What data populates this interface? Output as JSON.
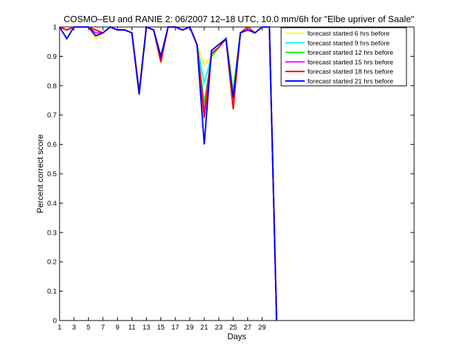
{
  "chart_data": {
    "type": "line",
    "title": "COSMO–EU and RANIE 2: 06/2007 12–18 UTC, 10.0 mm/6h for \"Elbe upriver of Saale\"",
    "xlabel": "Days",
    "ylabel": "Percent correct score",
    "xlim": [
      1,
      50
    ],
    "ylim": [
      0,
      1
    ],
    "xticks": [
      1,
      3,
      5,
      7,
      9,
      11,
      13,
      15,
      17,
      19,
      21,
      23,
      25,
      27,
      29
    ],
    "xtick_labels": [
      "1",
      "3",
      "5",
      "7",
      "9",
      "11",
      "13",
      "15",
      "17",
      "19",
      "21",
      "23",
      "25",
      "27",
      "29"
    ],
    "yticks": [
      0,
      0.1,
      0.2,
      0.3,
      0.4,
      0.5,
      0.6,
      0.7,
      0.8,
      0.9,
      1
    ],
    "ytick_labels": [
      "0",
      "0.1",
      "0.2",
      "0.3",
      "0.4",
      "0.5",
      "0.6",
      "0.7",
      "0.8",
      "0.9",
      "1"
    ],
    "grid": false,
    "legend_position": "top-right",
    "x": [
      1,
      2,
      3,
      4,
      5,
      6,
      7,
      8,
      9,
      10,
      11,
      12,
      13,
      14,
      15,
      16,
      17,
      18,
      19,
      20,
      21,
      22,
      23,
      24,
      25,
      26,
      27,
      28,
      29,
      30,
      31
    ],
    "series": [
      {
        "name": "forecast started 6 hrs before",
        "color": "#ffff00",
        "values": [
          1.0,
          0.99,
          1.0,
          1.0,
          1.0,
          0.96,
          0.98,
          1.0,
          0.99,
          0.99,
          0.98,
          0.78,
          1.0,
          0.99,
          0.9,
          1.0,
          1.0,
          0.99,
          1.0,
          0.94,
          0.87,
          0.9,
          0.93,
          0.96,
          0.79,
          0.98,
          1.0,
          0.98,
          1.0,
          1.0,
          0.0
        ]
      },
      {
        "name": "forecast started 9 hrs before",
        "color": "#00ffff",
        "values": [
          1.0,
          0.99,
          1.0,
          1.0,
          1.0,
          0.97,
          0.98,
          1.0,
          0.99,
          0.99,
          0.98,
          0.78,
          1.0,
          0.99,
          0.9,
          1.0,
          1.0,
          0.99,
          1.0,
          0.94,
          0.81,
          0.9,
          0.93,
          0.96,
          0.78,
          0.98,
          1.0,
          0.98,
          1.0,
          1.0,
          0.0
        ]
      },
      {
        "name": "forecast started 12 hrs before",
        "color": "#00ff00",
        "values": [
          1.0,
          0.99,
          1.0,
          1.0,
          1.0,
          0.98,
          0.98,
          1.0,
          0.99,
          0.99,
          0.98,
          0.78,
          1.0,
          0.99,
          0.89,
          1.0,
          1.0,
          0.99,
          1.0,
          0.94,
          0.74,
          0.9,
          0.93,
          0.96,
          0.77,
          0.98,
          1.0,
          0.98,
          1.0,
          1.0,
          0.0
        ]
      },
      {
        "name": "forecast started 15 hrs before",
        "color": "#ff00ff",
        "values": [
          1.0,
          0.99,
          1.0,
          1.0,
          1.0,
          0.98,
          0.98,
          1.0,
          0.99,
          0.99,
          0.98,
          0.78,
          1.0,
          0.99,
          0.89,
          1.0,
          1.0,
          0.99,
          1.0,
          0.94,
          0.71,
          0.91,
          0.93,
          0.96,
          0.75,
          0.98,
          1.0,
          0.98,
          1.0,
          1.0,
          0.0
        ]
      },
      {
        "name": "forecast started 18 hrs before",
        "color": "#ff0000",
        "values": [
          1.0,
          0.99,
          1.0,
          1.0,
          1.0,
          0.99,
          0.98,
          1.0,
          0.99,
          0.99,
          0.98,
          0.78,
          1.0,
          0.99,
          0.88,
          1.0,
          1.0,
          0.99,
          1.0,
          0.94,
          0.69,
          0.91,
          0.93,
          0.96,
          0.72,
          0.98,
          1.0,
          0.98,
          1.0,
          1.0,
          0.0
        ]
      },
      {
        "name": "forecast started 21 hrs before",
        "color": "#0000ff",
        "values": [
          1.0,
          0.96,
          1.0,
          1.0,
          1.0,
          0.97,
          0.98,
          1.0,
          0.99,
          0.99,
          0.98,
          0.77,
          1.0,
          0.99,
          0.9,
          1.0,
          1.0,
          0.99,
          1.0,
          0.94,
          0.6,
          0.92,
          0.94,
          0.96,
          0.76,
          0.98,
          0.99,
          0.98,
          1.0,
          1.0,
          0.0
        ]
      }
    ]
  }
}
